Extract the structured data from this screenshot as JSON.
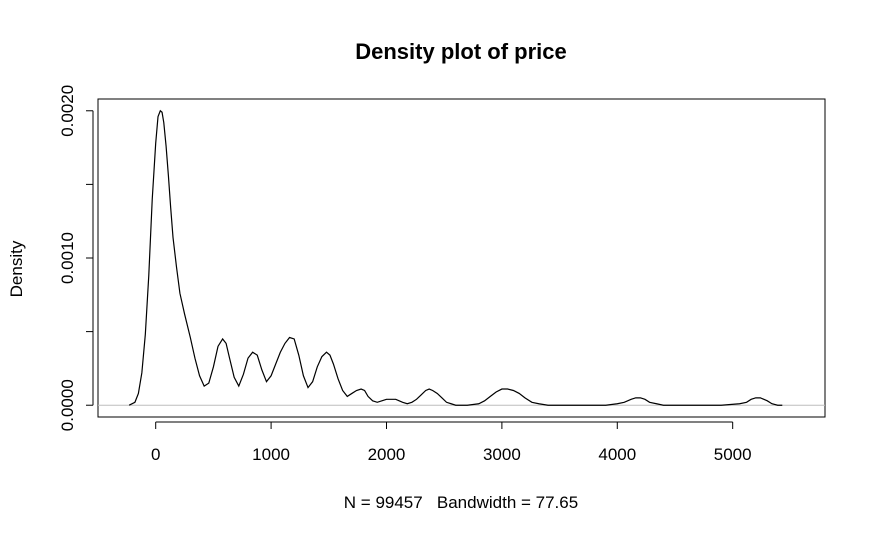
{
  "chart_data": {
    "type": "area",
    "title": "Density plot of price",
    "xlabel": "N = 99457   Bandwidth = 77.65",
    "ylabel": "Density",
    "xlim": [
      -500,
      5800
    ],
    "ylim": [
      -8e-05,
      0.00208
    ],
    "x_ticks": [
      0,
      1000,
      2000,
      3000,
      4000,
      5000
    ],
    "x_tick_labels": [
      "0",
      "1000",
      "2000",
      "3000",
      "4000",
      "5000"
    ],
    "y_ticks": [
      0.0,
      0.0005,
      0.001,
      0.0015,
      0.002
    ],
    "y_tick_labels": [
      "0.0000",
      "",
      "0.0010",
      "",
      "0.0020"
    ],
    "baseline": 0,
    "grid": false,
    "legend": "none",
    "colors": {
      "line": "#000000",
      "baseline": "#bebebe",
      "frame": "#000000"
    },
    "series": [
      {
        "x": [
          -230,
          -180,
          -150,
          -120,
          -90,
          -60,
          -30,
          0,
          20,
          40,
          55,
          70,
          90,
          110,
          130,
          150,
          180,
          210,
          250,
          300,
          340,
          380,
          420,
          460,
          500,
          540,
          580,
          610,
          640,
          680,
          720,
          760,
          800,
          840,
          880,
          920,
          960,
          1000,
          1040,
          1080,
          1120,
          1160,
          1200,
          1240,
          1280,
          1320,
          1360,
          1400,
          1440,
          1480,
          1510,
          1540,
          1580,
          1620,
          1660,
          1700,
          1740,
          1780,
          1810,
          1840,
          1880,
          1920,
          1960,
          2000,
          2040,
          2080,
          2110,
          2140,
          2180,
          2220,
          2260,
          2300,
          2340,
          2370,
          2400,
          2440,
          2480,
          2520,
          2560,
          2600,
          2700,
          2800,
          2850,
          2900,
          2950,
          3000,
          3050,
          3100,
          3150,
          3200,
          3260,
          3320,
          3400,
          3600,
          3900,
          4000,
          4060,
          4120,
          4160,
          4200,
          4240,
          4280,
          4340,
          4400,
          4600,
          4900,
          5060,
          5120,
          5160,
          5200,
          5240,
          5270,
          5300,
          5340,
          5390,
          5430
        ],
        "y": [
          0.0,
          2e-05,
          8e-05,
          0.00022,
          0.00048,
          0.00088,
          0.0014,
          0.00178,
          0.00196,
          0.002,
          0.00199,
          0.00192,
          0.00176,
          0.00156,
          0.00134,
          0.00114,
          0.00094,
          0.00076,
          0.00062,
          0.00046,
          0.00032,
          0.0002,
          0.00013,
          0.00015,
          0.00026,
          0.0004,
          0.00045,
          0.00042,
          0.00032,
          0.00019,
          0.00013,
          0.00021,
          0.00032,
          0.00036,
          0.00034,
          0.00024,
          0.00016,
          0.0002,
          0.00028,
          0.00036,
          0.00042,
          0.00046,
          0.00045,
          0.00034,
          0.0002,
          0.00012,
          0.00016,
          0.00026,
          0.00033,
          0.00036,
          0.00034,
          0.00028,
          0.00018,
          0.0001,
          6e-05,
          8e-05,
          0.0001,
          0.00011,
          0.0001,
          6e-05,
          3e-05,
          2e-05,
          3e-05,
          4e-05,
          4e-05,
          4e-05,
          3e-05,
          2e-05,
          1e-05,
          2e-05,
          4e-05,
          7e-05,
          0.0001,
          0.00011,
          0.0001,
          8e-05,
          5e-05,
          2e-05,
          1e-05,
          0.0,
          0.0,
          1e-05,
          3e-05,
          6e-05,
          9e-05,
          0.00011,
          0.00011,
          0.0001,
          8e-05,
          5e-05,
          2e-05,
          1e-05,
          0.0,
          0.0,
          0.0,
          1e-05,
          2e-05,
          4e-05,
          5e-05,
          5e-05,
          4e-05,
          2e-05,
          1e-05,
          0.0,
          0.0,
          0.0,
          1e-05,
          2e-05,
          4e-05,
          5e-05,
          5e-05,
          4e-05,
          3e-05,
          1e-05,
          0.0,
          0.0
        ]
      }
    ]
  }
}
